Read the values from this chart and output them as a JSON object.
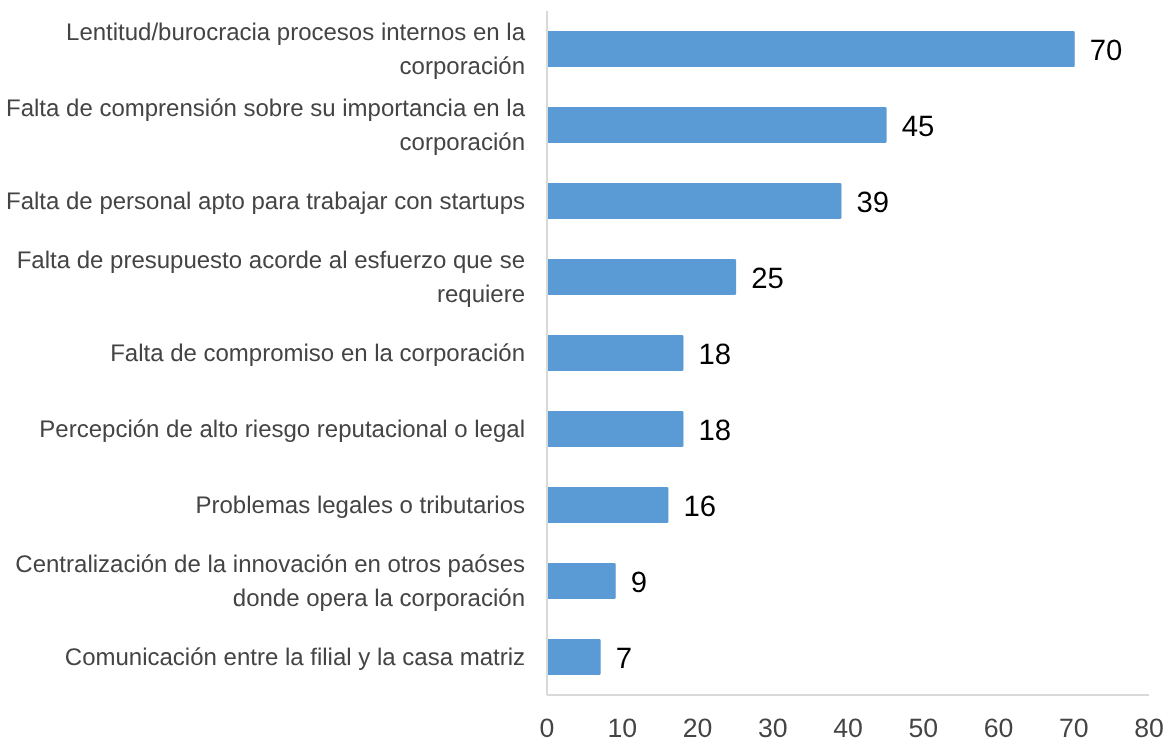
{
  "chart_data": {
    "type": "bar",
    "orientation": "horizontal",
    "categories": [
      "Lentitud/burocracia procesos internos en la corporación",
      "Falta de comprensión sobre su importancia en la corporación",
      "Falta de personal apto para trabajar con startups",
      "Falta de presupuesto acorde al esfuerzo que se requiere",
      "Falta de compromiso en la corporación",
      "Percepción de alto riesgo reputacional o legal",
      "Problemas legales o tributarios",
      "Centralización de la innovación en otros paóses donde opera la corporación",
      "Comunicación entre la filial y la casa matriz"
    ],
    "values": [
      70,
      45,
      39,
      25,
      18,
      18,
      16,
      9,
      7
    ],
    "color": "#5b9bd5",
    "data_labels": true,
    "xlim": [
      0,
      80
    ],
    "xticks": [
      0,
      10,
      20,
      30,
      40,
      50,
      60,
      70,
      80
    ],
    "grid": false
  }
}
